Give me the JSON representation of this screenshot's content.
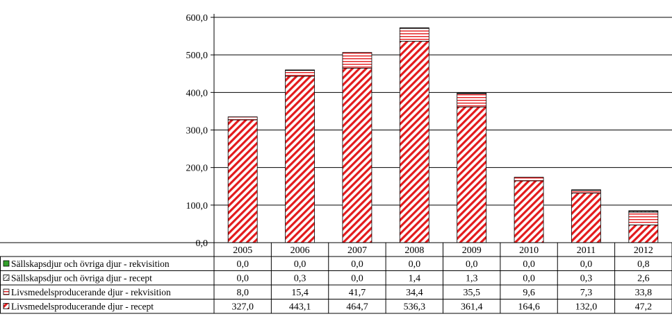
{
  "chart_data": {
    "type": "bar",
    "stacked": true,
    "categories": [
      "2005",
      "2006",
      "2007",
      "2008",
      "2009",
      "2010",
      "2011",
      "2012"
    ],
    "ylim": [
      0,
      600
    ],
    "yticks": [
      "0,0",
      "100,0",
      "200,0",
      "300,0",
      "400,0",
      "500,0",
      "600,0"
    ],
    "grid": true,
    "legend": "table-below",
    "series": [
      {
        "name": "Livsmedelsproducerande djur - recept",
        "color": "#e31a1c",
        "pattern": "diagonal-hatch",
        "values": [
          327.0,
          443.1,
          464.7,
          536.3,
          361.4,
          164.6,
          132.0,
          47.2
        ],
        "labels": [
          "327,0",
          "443,1",
          "464,7",
          "536,3",
          "361,4",
          "164,6",
          "132,0",
          "47,2"
        ]
      },
      {
        "name": "Livsmedelsproducerande djur - rekvisition",
        "color": "#e31a1c",
        "pattern": "horizontal-lines",
        "values": [
          8.0,
          15.4,
          41.7,
          34.4,
          35.5,
          9.6,
          7.3,
          33.8
        ],
        "labels": [
          "8,0",
          "15,4",
          "41,7",
          "34,4",
          "35,5",
          "9,6",
          "7,3",
          "33,8"
        ]
      },
      {
        "name": "Sällskapsdjur och övriga djur - recept",
        "color": "#555555",
        "pattern": "light-hatch",
        "values": [
          0.0,
          0.3,
          0.0,
          1.4,
          1.3,
          0.0,
          0.3,
          2.6
        ],
        "labels": [
          "0,0",
          "0,3",
          "0,0",
          "1,4",
          "1,3",
          "0,0",
          "0,3",
          "2,6"
        ]
      },
      {
        "name": "Sällskapsdjur och övriga djur - rekvisition",
        "color": "#33a02c",
        "pattern": "solid",
        "values": [
          0.0,
          0.0,
          0.0,
          0.0,
          0.0,
          0.0,
          0.0,
          0.8
        ],
        "labels": [
          "0,0",
          "0,0",
          "0,0",
          "0,0",
          "0,0",
          "0,0",
          "0,0",
          "0,8"
        ]
      }
    ],
    "table_row_order": [
      3,
      2,
      1,
      0
    ]
  }
}
